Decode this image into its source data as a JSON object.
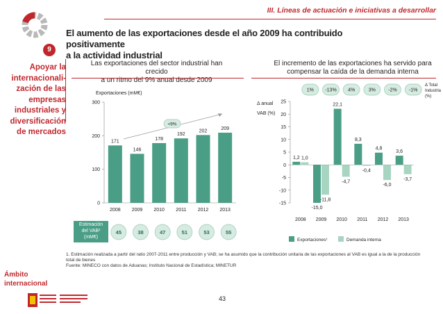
{
  "header": {
    "section_title": "III. Líneas de actuación e iniciativas a desarrollar",
    "headline_1": "El aumento de las exportaciones desde el año 2009 ha contribuido positivamente",
    "headline_2": "a la actividad industrial"
  },
  "sidebar": {
    "badge_number": "9",
    "lines": [
      "Apoyar la",
      "internacionali-",
      "zación de las",
      "empresas",
      "industriales y",
      "diversificación",
      "de mercados"
    ],
    "ambito_1": "Ámbito",
    "ambito_2": "internacional"
  },
  "left_panel": {
    "subtitle_1": "Las exportaciones del sector industrial han crecido",
    "subtitle_2": "a un ritmo del 9% anual desde 2009",
    "estimacion_lines": [
      "Estimación",
      "del VAB¹",
      "(mM€)"
    ],
    "vab_values": [
      "45",
      "38",
      "47",
      "51",
      "53",
      "55"
    ]
  },
  "right_panel": {
    "subtitle_1": "El incremento de las exportaciones ha servido para",
    "subtitle_2": "compensar la caída de la demanda interna",
    "pills": [
      "1%",
      "-13%",
      "4%",
      "3%",
      "-2%",
      "-1%"
    ],
    "pill_label_lines": [
      "Δ Total",
      "Industria",
      "(%)"
    ]
  },
  "footer": {
    "footnote_1": "1. Estimación realizada a partir del ratio 2007-2011 entre producción y VAB; se ha asumido que la contribución unitaria de las exportaciones al VAB es igual a la de la producción",
    "footnote_2": "total de bienes",
    "footnote_3": "Fuente: MINECO con datos de Aduanas; Instituto Nacional de Estadística; MINETUR",
    "page_number": "43"
  },
  "colors": {
    "accent": "#c0272d",
    "bar_dark": "#4a9e86",
    "bar_light": "#a8d5c2"
  },
  "chart_data": [
    {
      "type": "bar",
      "title": "",
      "ylabel": "Exportaciones (mM€)",
      "categories": [
        "2008",
        "2009",
        "2010",
        "2011",
        "2012",
        "2013"
      ],
      "values": [
        171,
        146,
        178,
        192,
        202,
        209
      ],
      "ylim": [
        0,
        300
      ],
      "yticks": [
        0,
        100,
        200,
        300
      ],
      "annotation": "+9%"
    },
    {
      "type": "bar",
      "ylabel_1": "Δ anual",
      "ylabel_2": "VAB (%)",
      "categories": [
        "2008",
        "2009",
        "2010",
        "2011",
        "2012",
        "2013"
      ],
      "ylim": [
        -15,
        25
      ],
      "yticks": [
        -15,
        -10,
        -5,
        0,
        5,
        10,
        15,
        20,
        25
      ],
      "series": [
        {
          "name": "Exportaciones¹",
          "values": [
            1.2,
            -15.0,
            22.1,
            8.3,
            4.8,
            3.6
          ],
          "labels": [
            "1,2",
            "-15,0",
            "22,1",
            "8,3",
            "4,8",
            "3,6"
          ]
        },
        {
          "name": "Demanda interna",
          "values": [
            1.0,
            -11.8,
            -4.7,
            -0.4,
            -6.0,
            -3.7
          ],
          "labels": [
            "1,0",
            "-11,8",
            "-4,7",
            "-0,4",
            "-6,0",
            "-3,7"
          ]
        }
      ]
    }
  ]
}
